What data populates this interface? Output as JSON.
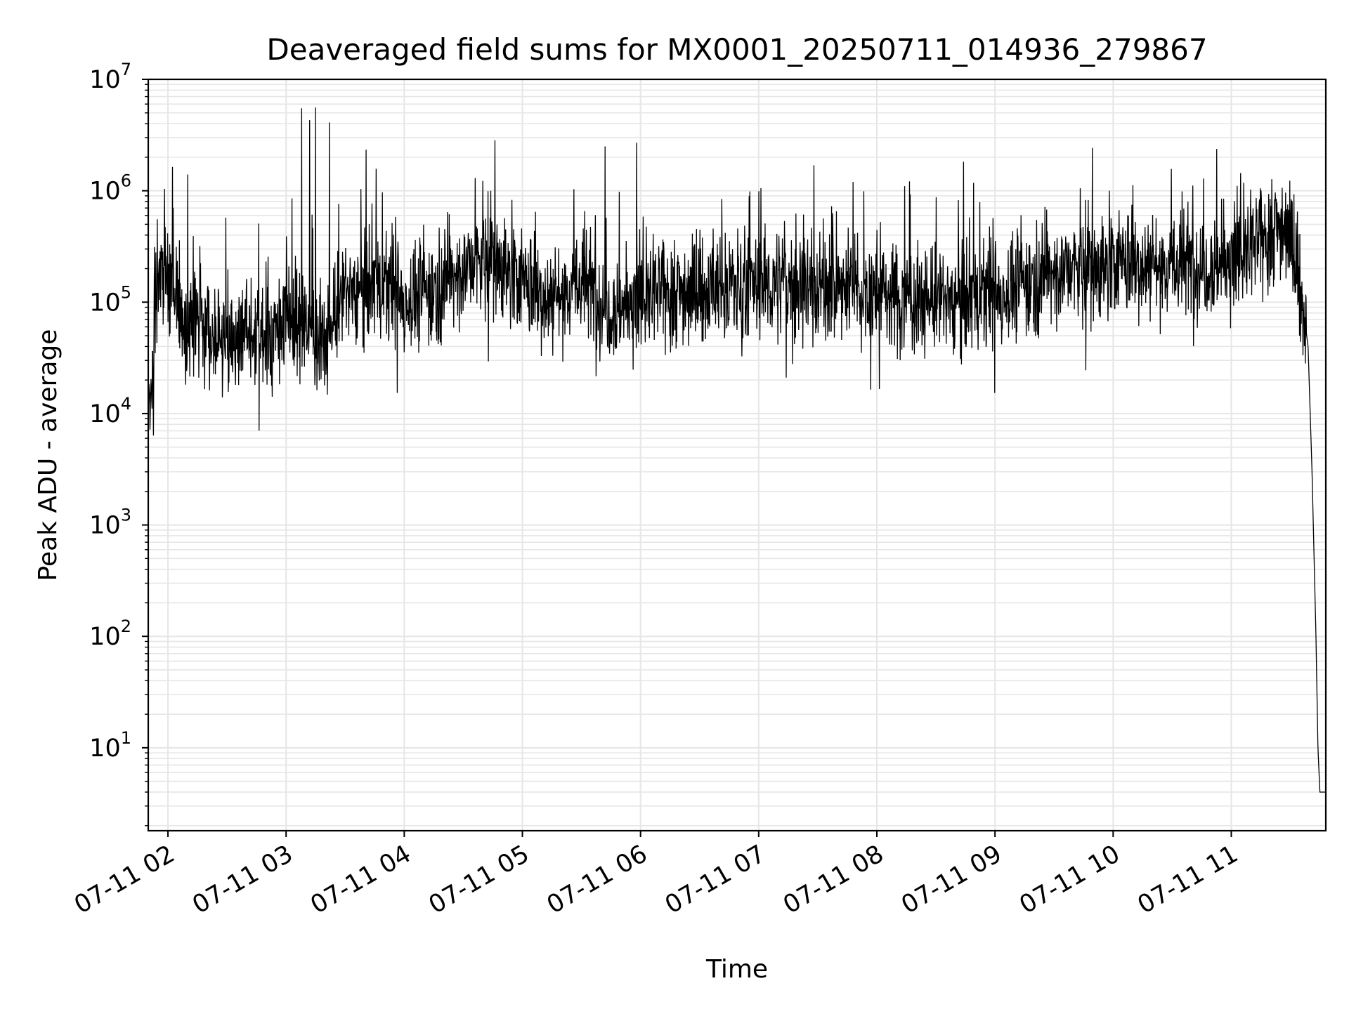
{
  "chart_data": {
    "type": "line",
    "title": "Deaveraged field sums for MX0001_20250711_014936_279867",
    "xlabel": "Time",
    "ylabel": "Peak ADU - average",
    "yscale": "log",
    "ylim": [
      1.8,
      10000000
    ],
    "xlim": [
      "2025-07-11 01:50",
      "2025-07-11 11:48"
    ],
    "grid": true,
    "line_color": "#000000",
    "grid_color": "#e6e6e6",
    "x_ticks": [
      {
        "value": "2025-07-11 02:00",
        "label": "07-11 02"
      },
      {
        "value": "2025-07-11 03:00",
        "label": "07-11 03"
      },
      {
        "value": "2025-07-11 04:00",
        "label": "07-11 04"
      },
      {
        "value": "2025-07-11 05:00",
        "label": "07-11 05"
      },
      {
        "value": "2025-07-11 06:00",
        "label": "07-11 06"
      },
      {
        "value": "2025-07-11 07:00",
        "label": "07-11 07"
      },
      {
        "value": "2025-07-11 08:00",
        "label": "07-11 08"
      },
      {
        "value": "2025-07-11 09:00",
        "label": "07-11 09"
      },
      {
        "value": "2025-07-11 10:00",
        "label": "07-11 10"
      },
      {
        "value": "2025-07-11 11:00",
        "label": "07-11 11"
      }
    ],
    "y_ticks": [
      {
        "value": 10,
        "base": "10",
        "exp": "1"
      },
      {
        "value": 100,
        "base": "10",
        "exp": "2"
      },
      {
        "value": 1000,
        "base": "10",
        "exp": "3"
      },
      {
        "value": 10000,
        "base": "10",
        "exp": "4"
      },
      {
        "value": 100000,
        "base": "10",
        "exp": "5"
      },
      {
        "value": 1000000,
        "base": "10",
        "exp": "6"
      },
      {
        "value": 10000000,
        "base": "10",
        "exp": "7"
      }
    ],
    "series": [
      {
        "x": [
          "2025-07-11 01:50",
          "2025-07-11 01:51",
          "2025-07-11 01:52",
          "2025-07-11 01:53",
          "2025-07-11 01:55",
          "2025-07-11 01:57",
          "2025-07-11 02:00",
          "2025-07-11 02:05",
          "2025-07-11 02:10",
          "2025-07-11 02:20",
          "2025-07-11 02:30",
          "2025-07-11 02:40",
          "2025-07-11 02:50",
          "2025-07-11 03:00",
          "2025-07-11 03:10",
          "2025-07-11 03:20",
          "2025-07-11 03:30",
          "2025-07-11 03:45",
          "2025-07-11 04:00",
          "2025-07-11 04:15",
          "2025-07-11 04:30",
          "2025-07-11 04:45",
          "2025-07-11 05:00",
          "2025-07-11 05:15",
          "2025-07-11 05:30",
          "2025-07-11 05:45",
          "2025-07-11 06:00",
          "2025-07-11 06:15",
          "2025-07-11 06:30",
          "2025-07-11 06:45",
          "2025-07-11 07:00",
          "2025-07-11 07:15",
          "2025-07-11 07:30",
          "2025-07-11 07:45",
          "2025-07-11 08:00",
          "2025-07-11 08:15",
          "2025-07-11 08:30",
          "2025-07-11 08:45",
          "2025-07-11 09:00",
          "2025-07-11 09:15",
          "2025-07-11 09:30",
          "2025-07-11 09:45",
          "2025-07-11 10:00",
          "2025-07-11 10:15",
          "2025-07-11 10:30",
          "2025-07-11 10:45",
          "2025-07-11 11:00",
          "2025-07-11 11:10",
          "2025-07-11 11:20",
          "2025-07-11 11:28",
          "2025-07-11 11:33",
          "2025-07-11 11:36",
          "2025-07-11 11:39",
          "2025-07-11 11:41",
          "2025-07-11 11:43",
          "2025-07-11 11:44",
          "2025-07-11 11:45",
          "2025-07-11 11:46",
          "2025-07-11 11:47",
          "2025-07-11 11:48"
        ],
        "values": [
          25000,
          10000,
          16000,
          40000,
          120000,
          200000,
          150000,
          90000,
          70000,
          55000,
          40000,
          60000,
          45000,
          80000,
          60000,
          45000,
          120000,
          150000,
          100000,
          130000,
          200000,
          250000,
          150000,
          110000,
          150000,
          90000,
          100000,
          130000,
          120000,
          140000,
          140000,
          150000,
          140000,
          130000,
          120000,
          110000,
          100000,
          110000,
          110000,
          150000,
          190000,
          200000,
          220000,
          230000,
          210000,
          220000,
          230000,
          280000,
          450000,
          500000,
          200000,
          100000,
          40000,
          3000,
          100,
          10,
          4,
          4,
          4,
          4
        ]
      },
      {
        "x": [
          "2025-07-11 03:08",
          "2025-07-11 03:12",
          "2025-07-11 03:15",
          "2025-07-11 03:22",
          "2025-07-11 05:42",
          "2025-07-11 05:58",
          "2025-07-11 02:10",
          "2025-07-11 04:36",
          "2025-07-11 07:48",
          "2025-07-11 10:55"
        ],
        "values": [
          5500000,
          4300000,
          5600000,
          4100000,
          2500000,
          2700000,
          1400000,
          1300000,
          1200000,
          850000
        ]
      }
    ]
  }
}
